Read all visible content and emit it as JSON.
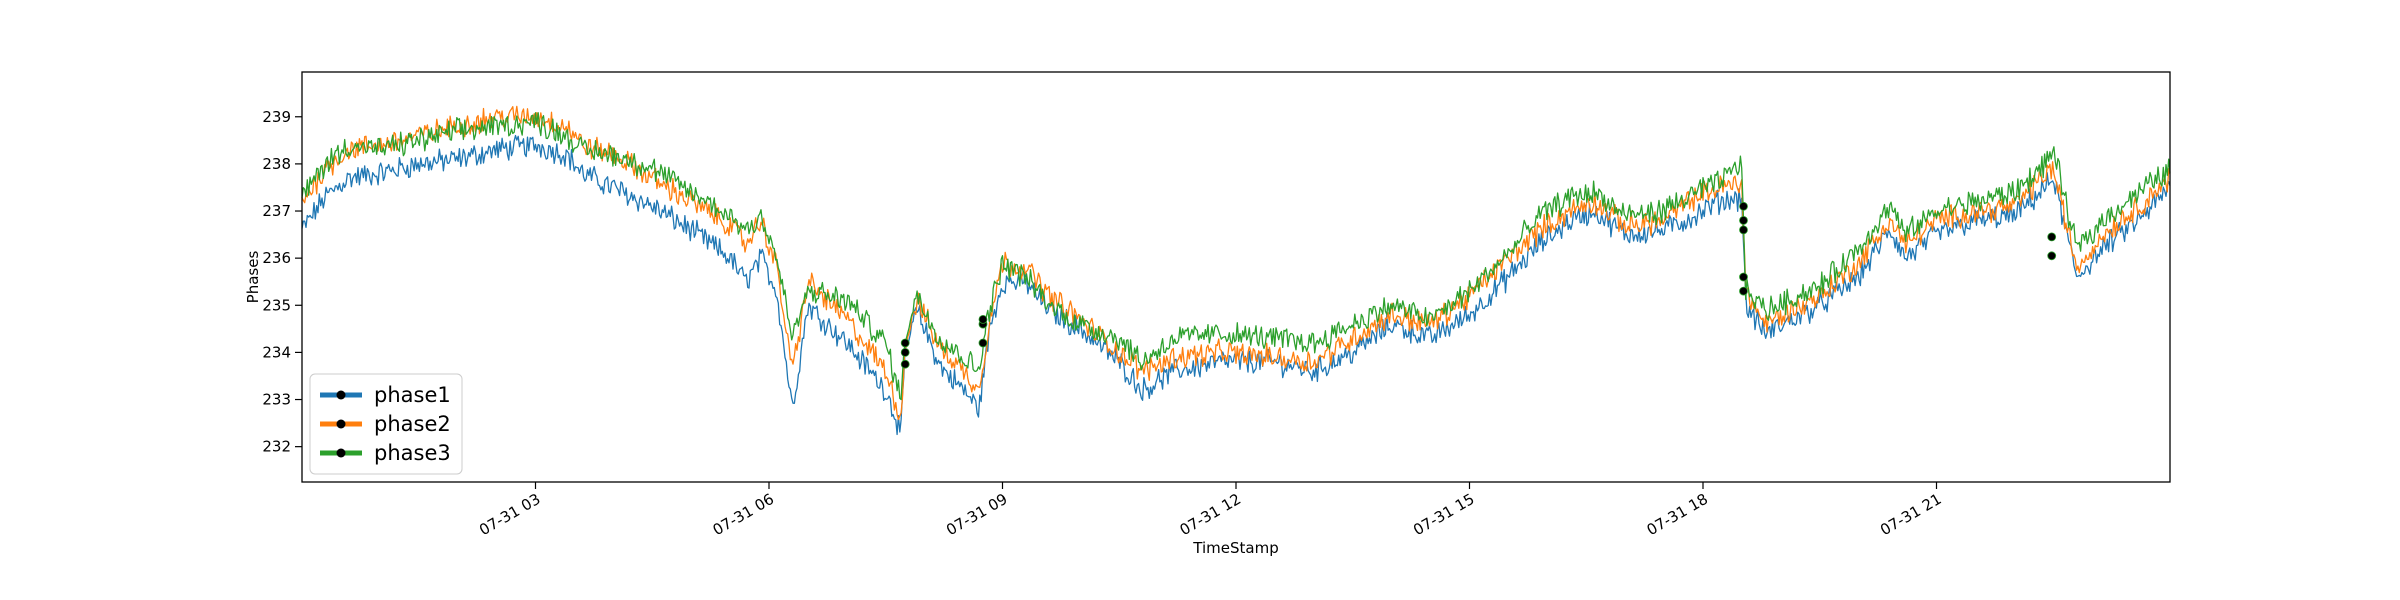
{
  "chart_data": {
    "type": "line",
    "title": "",
    "xlabel": "TimeStamp",
    "ylabel": "Phases",
    "x_range_hours": [
      0.0,
      24.0
    ],
    "ylim": [
      231.25,
      239.95
    ],
    "grid": false,
    "legend_position": "lower-left",
    "x_ticks": [
      {
        "hour": 3,
        "label": "07-31 03"
      },
      {
        "hour": 6,
        "label": "07-31 06"
      },
      {
        "hour": 9,
        "label": "07-31 09"
      },
      {
        "hour": 12,
        "label": "07-31 12"
      },
      {
        "hour": 15,
        "label": "07-31 15"
      },
      {
        "hour": 18,
        "label": "07-31 18"
      },
      {
        "hour": 21,
        "label": "07-31 21"
      }
    ],
    "y_ticks": [
      232,
      233,
      234,
      235,
      236,
      237,
      238,
      239
    ],
    "series": [
      {
        "name": "phase1",
        "color": "#1f77b4",
        "x_hours": [
          0.0,
          0.3,
          0.6,
          1.0,
          1.5,
          2.0,
          2.5,
          3.0,
          3.4,
          3.6,
          4.0,
          4.5,
          5.0,
          5.5,
          5.7,
          5.9,
          6.1,
          6.3,
          6.5,
          7.0,
          7.5,
          7.7,
          7.75,
          7.9,
          8.2,
          8.5,
          8.7,
          8.75,
          8.85,
          9.0,
          9.3,
          9.6,
          10.0,
          10.5,
          10.8,
          11.2,
          11.8,
          12.5,
          13.0,
          13.5,
          14.0,
          14.5,
          15.0,
          15.5,
          15.9,
          16.3,
          16.6,
          17.0,
          17.5,
          17.9,
          18.2,
          18.5,
          18.55,
          18.8,
          19.5,
          20.0,
          20.4,
          20.6,
          21.0,
          21.5,
          22.0,
          22.4,
          22.5,
          22.8,
          23.2,
          23.6,
          24.0
        ],
        "values": [
          236.6,
          237.3,
          237.7,
          237.8,
          238.0,
          238.1,
          238.3,
          238.4,
          238.2,
          237.8,
          237.5,
          237.1,
          236.6,
          236.0,
          235.5,
          236.0,
          235.3,
          232.8,
          235.0,
          234.2,
          233.2,
          232.3,
          234.0,
          234.9,
          233.7,
          233.2,
          232.8,
          233.5,
          234.6,
          235.5,
          235.5,
          234.9,
          234.5,
          233.8,
          233.2,
          233.6,
          233.8,
          233.8,
          233.6,
          234.0,
          234.6,
          234.3,
          234.8,
          235.6,
          236.3,
          236.8,
          237.0,
          236.5,
          236.6,
          236.9,
          237.2,
          237.3,
          235.0,
          234.4,
          235.0,
          235.6,
          236.6,
          236.0,
          236.5,
          236.8,
          236.9,
          237.5,
          237.7,
          235.6,
          236.3,
          236.8,
          237.5
        ]
      },
      {
        "name": "phase2",
        "color": "#ff7f0e",
        "x_hours": [
          0.0,
          0.3,
          0.6,
          1.0,
          1.5,
          2.0,
          2.5,
          3.0,
          3.4,
          3.6,
          4.0,
          4.5,
          5.0,
          5.5,
          5.7,
          5.9,
          6.1,
          6.3,
          6.5,
          7.0,
          7.5,
          7.7,
          7.75,
          7.9,
          8.2,
          8.5,
          8.7,
          8.75,
          8.85,
          9.0,
          9.3,
          9.6,
          10.0,
          10.5,
          10.8,
          11.2,
          11.8,
          12.5,
          13.0,
          13.5,
          14.0,
          14.5,
          15.0,
          15.5,
          15.9,
          16.3,
          16.6,
          17.0,
          17.5,
          17.9,
          18.2,
          18.5,
          18.55,
          18.8,
          19.5,
          20.0,
          20.4,
          20.6,
          21.0,
          21.5,
          22.0,
          22.4,
          22.5,
          22.8,
          23.2,
          23.6,
          24.0
        ],
        "values": [
          237.2,
          237.9,
          238.3,
          238.4,
          238.6,
          238.8,
          239.0,
          239.0,
          238.8,
          238.4,
          238.2,
          237.7,
          237.2,
          236.7,
          236.3,
          236.8,
          235.8,
          233.6,
          235.5,
          234.7,
          233.6,
          232.6,
          234.2,
          235.1,
          234.1,
          233.6,
          233.2,
          233.8,
          234.8,
          235.9,
          235.8,
          235.2,
          234.7,
          234.0,
          233.6,
          233.9,
          234.0,
          233.9,
          233.8,
          234.3,
          234.8,
          234.6,
          235.2,
          236.0,
          236.6,
          237.0,
          237.2,
          236.7,
          236.8,
          237.3,
          237.5,
          237.6,
          235.3,
          234.6,
          235.2,
          235.9,
          236.8,
          236.3,
          236.8,
          237.0,
          237.1,
          237.8,
          237.9,
          235.8,
          236.6,
          237.1,
          237.7
        ]
      },
      {
        "name": "phase3",
        "color": "#2ca02c",
        "x_hours": [
          0.0,
          0.3,
          0.6,
          1.0,
          1.5,
          2.0,
          2.5,
          3.0,
          3.4,
          3.6,
          4.0,
          4.5,
          5.0,
          5.5,
          5.7,
          5.9,
          6.1,
          6.3,
          6.5,
          7.0,
          7.5,
          7.7,
          7.75,
          7.9,
          8.2,
          8.5,
          8.7,
          8.75,
          8.85,
          9.0,
          9.3,
          9.6,
          10.0,
          10.5,
          10.8,
          11.2,
          11.8,
          12.5,
          13.0,
          13.5,
          14.0,
          14.5,
          15.0,
          15.5,
          15.9,
          16.3,
          16.6,
          17.0,
          17.5,
          17.9,
          18.2,
          18.5,
          18.55,
          18.8,
          19.5,
          20.0,
          20.4,
          20.6,
          21.0,
          21.5,
          22.0,
          22.4,
          22.5,
          22.8,
          23.2,
          23.6,
          24.0
        ],
        "values": [
          237.3,
          238.0,
          238.4,
          238.3,
          238.5,
          238.7,
          238.8,
          238.9,
          238.6,
          238.3,
          238.2,
          237.9,
          237.4,
          236.9,
          236.6,
          236.9,
          236.0,
          234.3,
          235.3,
          235.1,
          234.2,
          233.0,
          234.4,
          235.2,
          234.3,
          233.9,
          233.6,
          234.3,
          235.0,
          235.9,
          235.6,
          235.0,
          234.6,
          234.3,
          233.8,
          234.3,
          234.4,
          234.3,
          234.2,
          234.6,
          235.0,
          234.7,
          235.3,
          236.1,
          236.9,
          237.3,
          237.4,
          236.9,
          237.0,
          237.4,
          237.6,
          238.0,
          235.3,
          234.9,
          235.4,
          236.2,
          237.1,
          236.5,
          237.0,
          237.2,
          237.4,
          238.0,
          238.3,
          236.2,
          236.9,
          237.4,
          237.9
        ]
      }
    ],
    "markers": [
      {
        "hour": 7.75,
        "values": [
          233.75,
          234.0,
          234.2
        ]
      },
      {
        "hour": 8.75,
        "values": [
          234.2,
          234.6,
          234.7
        ]
      },
      {
        "hour": 18.52,
        "values": [
          235.3,
          235.6,
          236.6,
          236.8,
          237.1
        ]
      },
      {
        "hour": 22.48,
        "values": [
          236.05,
          236.45
        ]
      }
    ]
  }
}
